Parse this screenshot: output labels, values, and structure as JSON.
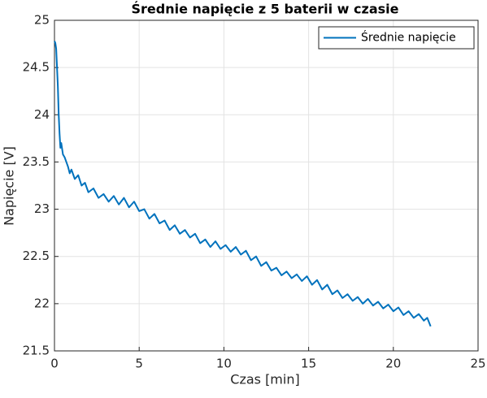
{
  "chart_data": {
    "type": "line",
    "title": "Średnie napięcie z 5 baterii w czasie",
    "x_label": "Czas [min]",
    "y_label": "Napięcie [V]",
    "x": [
      0,
      0.05,
      0.1,
      0.15,
      0.2,
      0.25,
      0.3,
      0.35,
      0.4,
      0.5,
      0.6,
      0.7,
      0.8,
      0.9,
      1.0,
      1.2,
      1.4,
      1.6,
      1.8,
      2.0,
      2.3,
      2.6,
      2.9,
      3.2,
      3.5,
      3.8,
      4.1,
      4.4,
      4.7,
      5.0,
      5.3,
      5.6,
      5.9,
      6.2,
      6.5,
      6.8,
      7.1,
      7.4,
      7.7,
      8.0,
      8.3,
      8.6,
      8.9,
      9.2,
      9.5,
      9.8,
      10.1,
      10.4,
      10.7,
      11.0,
      11.3,
      11.6,
      11.9,
      12.2,
      12.5,
      12.8,
      13.1,
      13.4,
      13.7,
      14.0,
      14.3,
      14.6,
      14.9,
      15.2,
      15.5,
      15.8,
      16.1,
      16.4,
      16.7,
      17.0,
      17.3,
      17.6,
      17.9,
      18.2,
      18.5,
      18.8,
      19.1,
      19.4,
      19.7,
      20.0,
      20.3,
      20.6,
      20.9,
      21.2,
      21.5,
      21.8,
      22.0,
      22.2
    ],
    "series": [
      {
        "name": "Średnie napięcie",
        "color": "#0072bd",
        "values": [
          24.78,
          24.76,
          24.7,
          24.5,
          24.3,
          24.0,
          23.8,
          23.65,
          23.7,
          23.58,
          23.55,
          23.5,
          23.45,
          23.38,
          23.42,
          23.32,
          23.36,
          23.25,
          23.28,
          23.18,
          23.22,
          23.12,
          23.16,
          23.08,
          23.14,
          23.05,
          23.12,
          23.02,
          23.08,
          22.98,
          23.0,
          22.9,
          22.95,
          22.85,
          22.88,
          22.78,
          22.83,
          22.74,
          22.78,
          22.7,
          22.74,
          22.64,
          22.68,
          22.6,
          22.66,
          22.58,
          22.62,
          22.55,
          22.6,
          22.52,
          22.56,
          22.46,
          22.5,
          22.4,
          22.44,
          22.35,
          22.38,
          22.3,
          22.34,
          22.27,
          22.31,
          22.24,
          22.29,
          22.2,
          22.25,
          22.15,
          22.2,
          22.1,
          22.14,
          22.06,
          22.1,
          22.03,
          22.07,
          22.0,
          22.05,
          21.98,
          22.02,
          21.95,
          21.99,
          21.92,
          21.96,
          21.88,
          21.92,
          21.85,
          21.89,
          21.82,
          21.85,
          21.76
        ]
      }
    ],
    "xlim": [
      0,
      25
    ],
    "xticks": [
      0,
      5,
      10,
      15,
      20,
      25
    ],
    "ylim": [
      21.5,
      25
    ],
    "yticks": [
      21.5,
      22,
      22.5,
      23,
      23.5,
      24,
      24.5,
      25
    ],
    "grid": true,
    "legend": "upper-right"
  }
}
